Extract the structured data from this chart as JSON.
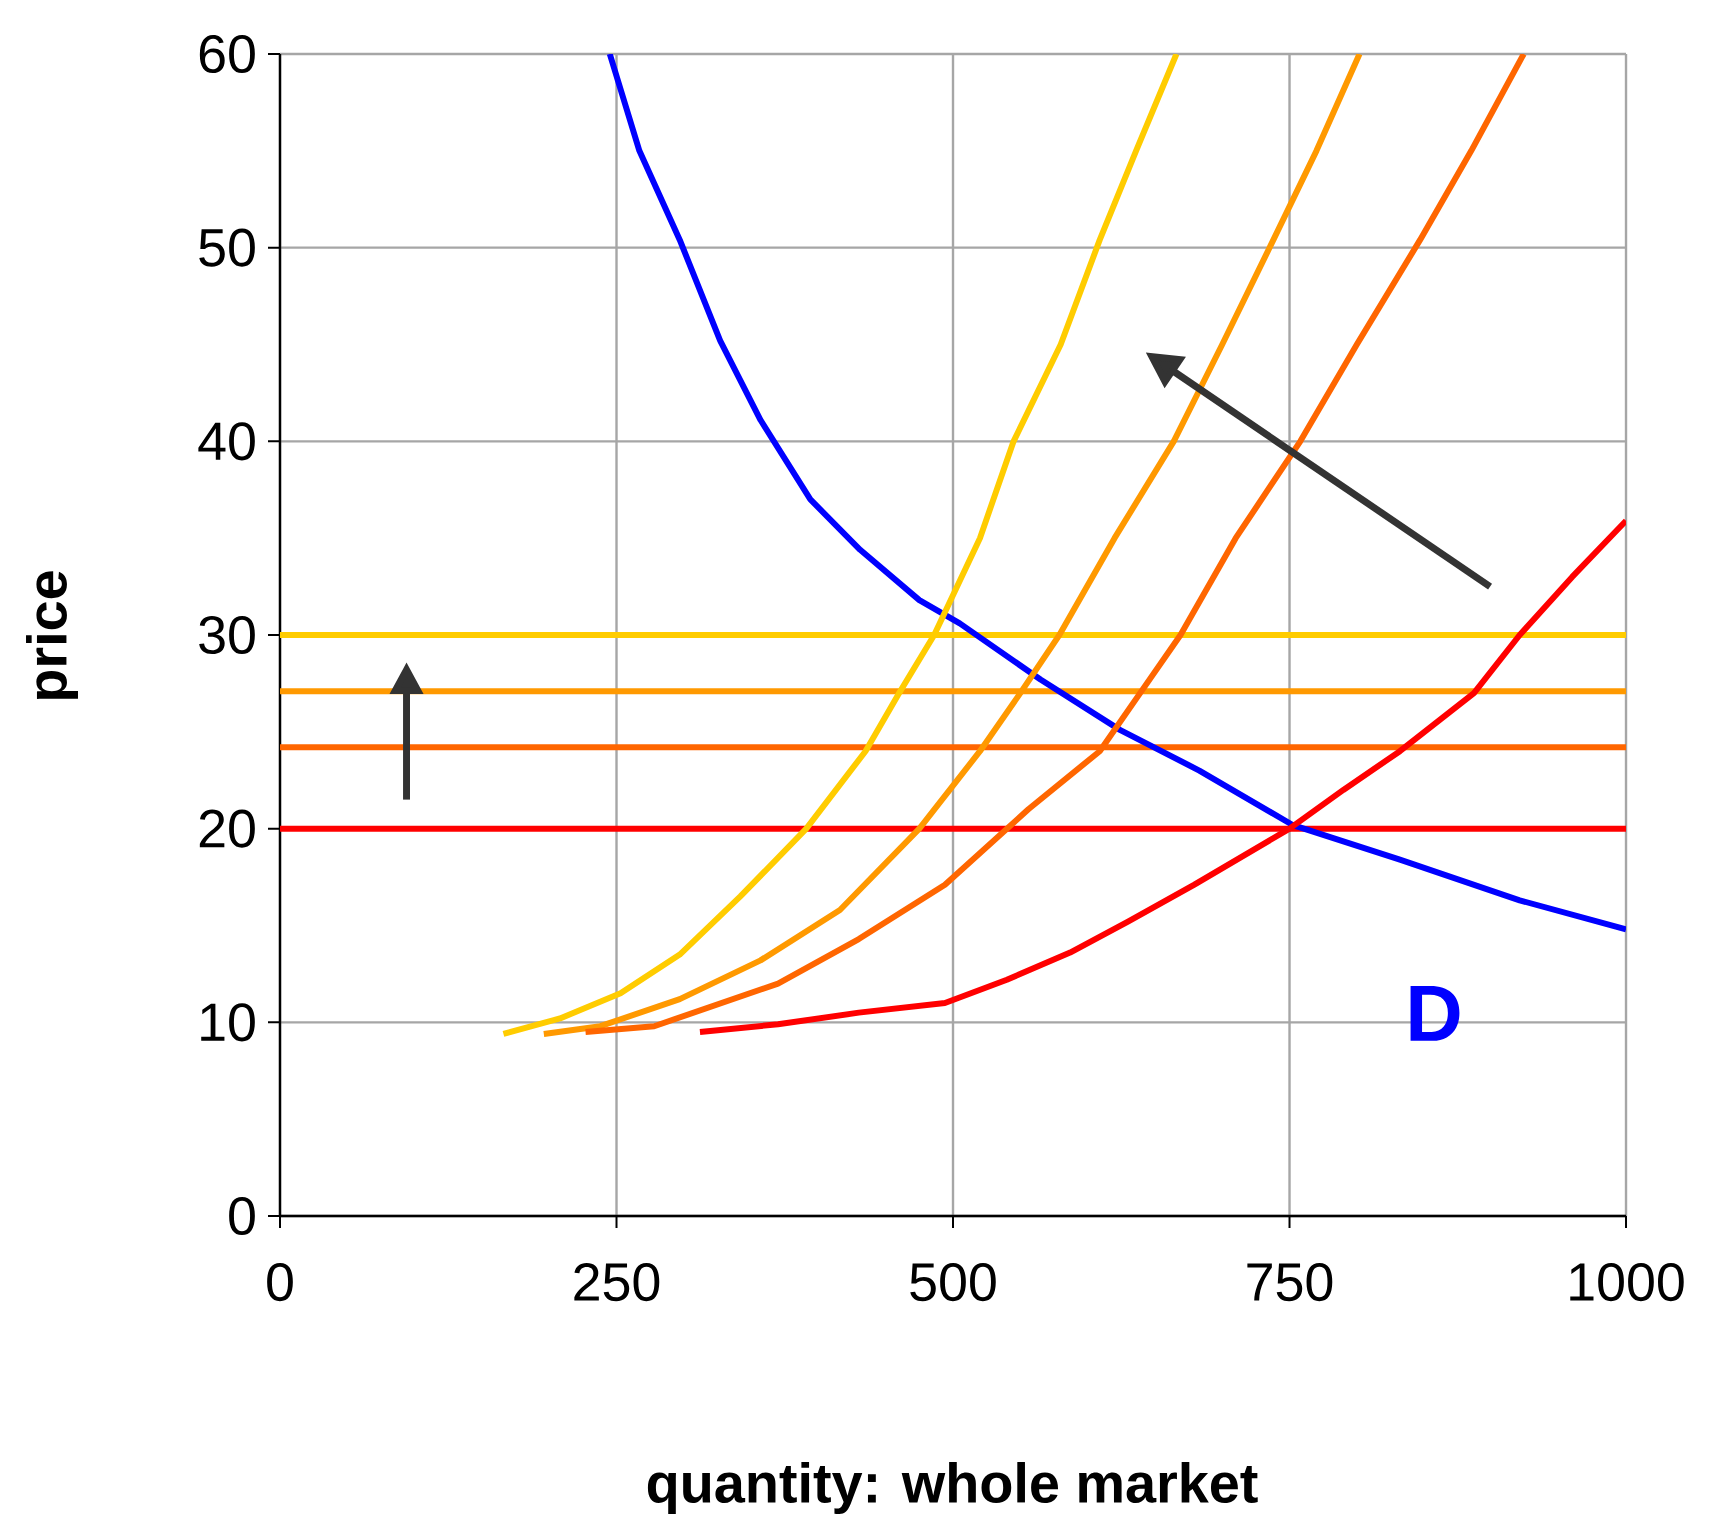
{
  "chart_data": {
    "type": "line",
    "xlabel": "quantity: whole market",
    "ylabel": "price",
    "xlim": [
      0,
      1000
    ],
    "ylim": [
      0,
      60
    ],
    "xticks": [
      0,
      250,
      500,
      750,
      1000
    ],
    "yticks": [
      0,
      10,
      20,
      30,
      40,
      50,
      60
    ],
    "grid": true,
    "marker": "none",
    "line_style": "solid",
    "series": [
      {
        "name": "D",
        "color": "#0000ff",
        "x": [
          245,
          267,
          297,
          327,
          357,
          394,
          431,
          475,
          505,
          565,
          624,
          683,
          752,
          832,
          921,
          1000
        ],
        "values": [
          60,
          55,
          50.4,
          45.2,
          41.1,
          37,
          34.4,
          31.8,
          30.6,
          27.7,
          25.1,
          23,
          20.2,
          18.4,
          16.3,
          14.8
        ]
      },
      {
        "color": "#ffcc00",
        "x": [
          166,
          208,
          253,
          297,
          342,
          391,
          435,
          460,
          486,
          520,
          545,
          580,
          609,
          636,
          666
        ],
        "values": [
          9.4,
          10.2,
          11.5,
          13.5,
          16.5,
          20,
          24,
          27,
          30,
          35,
          40,
          45,
          50.4,
          55,
          60
        ]
      },
      {
        "color": "#ff9900",
        "x": [
          196,
          238,
          297,
          357,
          416,
          475,
          520,
          550,
          579,
          620,
          664,
          700,
          738,
          770,
          802
        ],
        "values": [
          9.4,
          9.8,
          11.2,
          13.2,
          15.8,
          20,
          24,
          27,
          30,
          35,
          40,
          45,
          50.4,
          55,
          60
        ]
      },
      {
        "color": "#ff6600",
        "x": [
          227,
          278,
          370,
          430,
          494,
          556,
          609,
          639,
          669,
          710,
          758,
          800,
          847,
          885,
          924
        ],
        "values": [
          9.5,
          9.8,
          12,
          14.3,
          17.1,
          21,
          24,
          27,
          30,
          35,
          40,
          45,
          50.4,
          55,
          60
        ]
      },
      {
        "color": "#ff0000",
        "x": [
          312,
          370,
          430,
          494,
          540,
          587,
          630,
          679,
          750,
          790,
          832,
          887,
          921,
          960,
          1000
        ],
        "values": [
          9.5,
          9.9,
          10.5,
          11,
          12.2,
          13.6,
          15.2,
          17.1,
          20,
          22,
          24,
          27,
          30,
          33,
          35.9
        ]
      }
    ],
    "ref_lines": [
      {
        "axis": "y",
        "value": 30,
        "color": "#ffcc00"
      },
      {
        "axis": "y",
        "value": 27.1,
        "color": "#ff9900"
      },
      {
        "axis": "y",
        "value": 24.2,
        "color": "#ff6600"
      },
      {
        "axis": "y",
        "value": 20,
        "color": "#ff0000"
      }
    ]
  }
}
